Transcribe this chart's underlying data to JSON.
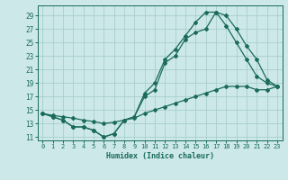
{
  "xlabel": "Humidex (Indice chaleur)",
  "bg_color": "#cce8e8",
  "grid_color": "#aacece",
  "line_color": "#1a6b5a",
  "xlim": [
    -0.5,
    23.5
  ],
  "ylim": [
    10.5,
    30.5
  ],
  "xticks": [
    0,
    1,
    2,
    3,
    4,
    5,
    6,
    7,
    8,
    9,
    10,
    11,
    12,
    13,
    14,
    15,
    16,
    17,
    18,
    19,
    20,
    21,
    22,
    23
  ],
  "yticks": [
    11,
    13,
    15,
    17,
    19,
    21,
    23,
    25,
    27,
    29
  ],
  "curve1_x": [
    0,
    1,
    2,
    3,
    4,
    5,
    6,
    7,
    8,
    9,
    10,
    11,
    12,
    13,
    14,
    15,
    16,
    17,
    18,
    19,
    20,
    21,
    22,
    23
  ],
  "curve1_y": [
    14.5,
    14.0,
    13.5,
    12.5,
    12.5,
    12.0,
    11.0,
    11.5,
    13.5,
    14.0,
    17.0,
    18.0,
    22.0,
    23.0,
    25.5,
    26.5,
    27.0,
    29.5,
    29.0,
    27.0,
    24.5,
    22.5,
    19.5,
    18.5
  ],
  "curve2_x": [
    0,
    1,
    2,
    3,
    4,
    5,
    6,
    7,
    8,
    9,
    10,
    11,
    12,
    13,
    14,
    15,
    16,
    17,
    18,
    19,
    20,
    21,
    22,
    23
  ],
  "curve2_y": [
    14.5,
    14.0,
    13.5,
    12.5,
    12.5,
    12.0,
    11.0,
    11.5,
    13.5,
    14.0,
    17.5,
    19.0,
    22.5,
    24.0,
    26.0,
    28.0,
    29.5,
    29.5,
    27.5,
    25.0,
    22.5,
    20.0,
    19.0,
    18.5
  ],
  "curve3_x": [
    0,
    1,
    2,
    3,
    4,
    5,
    6,
    7,
    8,
    9,
    10,
    11,
    12,
    13,
    14,
    15,
    16,
    17,
    18,
    19,
    20,
    21,
    22,
    23
  ],
  "curve3_y": [
    14.5,
    14.2,
    14.0,
    13.8,
    13.5,
    13.3,
    13.0,
    13.2,
    13.5,
    13.8,
    14.5,
    15.0,
    15.5,
    16.0,
    16.5,
    17.0,
    17.5,
    18.0,
    18.5,
    18.5,
    18.5,
    18.0,
    18.0,
    18.5
  ]
}
